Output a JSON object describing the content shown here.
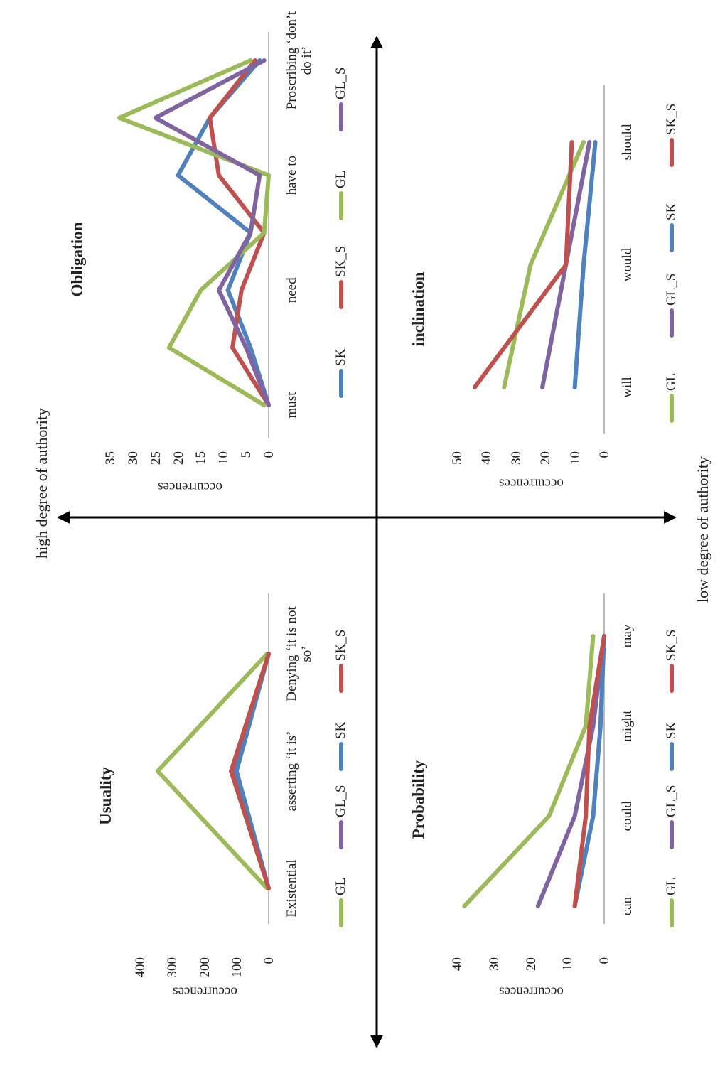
{
  "axes": {
    "top": "high degree of authority",
    "bottom": "low degree of authority"
  },
  "chart_data": [
    {
      "type": "line",
      "title": "Usuality",
      "y_label": "occurrences",
      "categories": [
        "Existential",
        "asserting ‘it is’",
        "Denying ‘it is not so’"
      ],
      "series": [
        {
          "name": "GL",
          "color": "#9bbb59",
          "values": [
            5,
            345,
            5
          ]
        },
        {
          "name": "GL_S",
          "color": "#8064a2",
          "values": [
            0,
            110,
            0
          ]
        },
        {
          "name": "SK",
          "color": "#4f81bd",
          "values": [
            0,
            100,
            0
          ]
        },
        {
          "name": "SK_S",
          "color": "#c0504d",
          "values": [
            0,
            117,
            0
          ]
        }
      ],
      "ylim": [
        0,
        400
      ],
      "yticks": [
        0,
        100,
        200,
        300,
        400
      ]
    },
    {
      "type": "line",
      "title": "Obligation",
      "y_label": "occurrences",
      "categories": [
        "must",
        null,
        "need",
        null,
        "have to",
        null,
        "Proscribing ‘don’t do it’"
      ],
      "series": [
        {
          "name": "SK",
          "color": "#4f81bd",
          "values": [
            0,
            4,
            9,
            4,
            20,
            13,
            2
          ]
        },
        {
          "name": "SK_S",
          "color": "#c0504d",
          "values": [
            0,
            8,
            6,
            1,
            11,
            13,
            3
          ]
        },
        {
          "name": "GL",
          "color": "#9bbb59",
          "values": [
            1,
            22,
            15,
            1,
            0,
            33,
            4
          ]
        },
        {
          "name": "GL_S",
          "color": "#8064a2",
          "values": [
            0,
            5,
            11,
            4,
            2,
            25,
            1
          ]
        }
      ],
      "ylim": [
        0,
        35
      ],
      "yticks": [
        0,
        5,
        10,
        15,
        20,
        25,
        30,
        35
      ]
    },
    {
      "type": "line",
      "title": "Probability",
      "y_label": "occurrences",
      "categories": [
        "can",
        "could",
        "might",
        "may"
      ],
      "series": [
        {
          "name": "GL",
          "color": "#9bbb59",
          "values": [
            38,
            15,
            5,
            3
          ]
        },
        {
          "name": "GL_S",
          "color": "#8064a2",
          "values": [
            18,
            8,
            3,
            0
          ]
        },
        {
          "name": "SK",
          "color": "#4f81bd",
          "values": [
            8,
            3,
            1,
            0
          ]
        },
        {
          "name": "SK_S",
          "color": "#c0504d",
          "values": [
            8,
            5,
            4,
            0
          ]
        }
      ],
      "ylim": [
        0,
        40
      ],
      "yticks": [
        0,
        10,
        20,
        30,
        40
      ]
    },
    {
      "type": "line",
      "title": "inclination",
      "y_label": "occurrences",
      "categories": [
        "will",
        "would",
        "should"
      ],
      "series": [
        {
          "name": "GL",
          "color": "#9bbb59",
          "values": [
            34,
            25,
            7
          ]
        },
        {
          "name": "GL_S",
          "color": "#8064a2",
          "values": [
            21,
            13,
            5
          ]
        },
        {
          "name": "SK",
          "color": "#4f81bd",
          "values": [
            10,
            7,
            3
          ]
        },
        {
          "name": "SK_S",
          "color": "#c0504d",
          "values": [
            44,
            13,
            11
          ]
        }
      ],
      "ylim": [
        0,
        50
      ],
      "yticks": [
        0,
        10,
        20,
        30,
        40,
        50
      ]
    }
  ]
}
